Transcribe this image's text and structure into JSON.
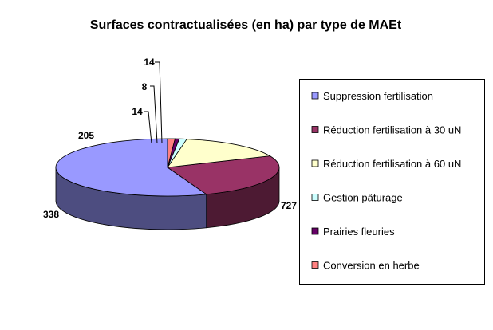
{
  "chart_data": {
    "type": "pie",
    "title": "Surfaces contractualisées (en ha) par type de MAEt",
    "categories": [
      "Suppression fertilisation",
      "Réduction fertilisation à 30 uN",
      "Réduction fertilisation à 60 uN",
      "Gestion pâturage",
      "Prairies fleuries",
      "Conversion en herbe"
    ],
    "values": [
      727,
      338,
      205,
      14,
      8,
      14
    ],
    "colors": [
      "#9999FF",
      "#993366",
      "#FFFFCC",
      "#CCFFFF",
      "#660066",
      "#FF8080"
    ],
    "legend_position": "right",
    "three_d": true
  }
}
